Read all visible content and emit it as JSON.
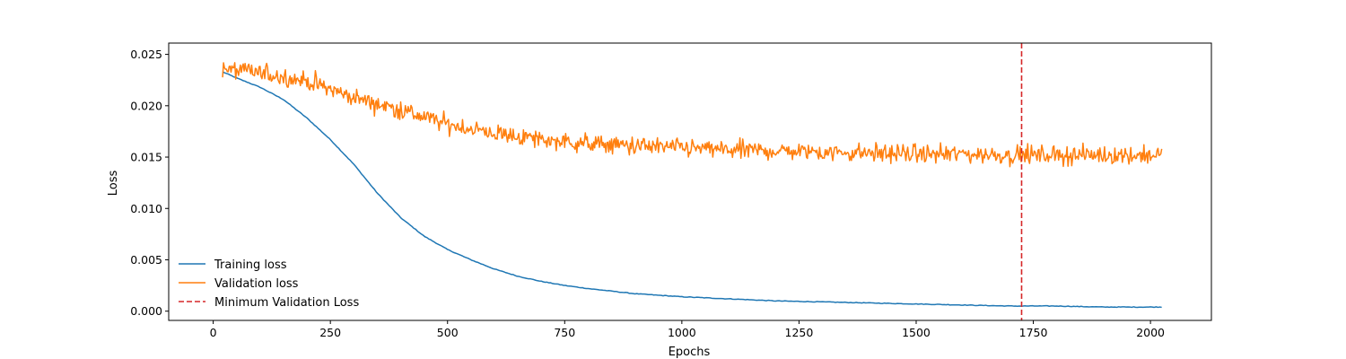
{
  "chart_data": {
    "type": "line",
    "title": "",
    "xlabel": "Epochs",
    "ylabel": "Loss",
    "xlim": [
      -95,
      2130
    ],
    "ylim": [
      -0.0009,
      0.0261
    ],
    "xticks": [
      0,
      250,
      500,
      750,
      1000,
      1250,
      1500,
      1750,
      2000
    ],
    "yticks": [
      0.0,
      0.005,
      0.01,
      0.015,
      0.02,
      0.025
    ],
    "ytick_labels": [
      "0.000",
      "0.005",
      "0.010",
      "0.015",
      "0.020",
      "0.025"
    ],
    "grid": false,
    "legend": {
      "position": "lower-left",
      "frame": false
    },
    "x_range": [
      20,
      2025
    ],
    "series": [
      {
        "name": "Training loss",
        "color": "#1f77b4",
        "style": "solid",
        "x": [
          20,
          50,
          100,
          150,
          200,
          250,
          300,
          350,
          400,
          450,
          500,
          550,
          600,
          650,
          700,
          750,
          800,
          900,
          1000,
          1100,
          1200,
          1300,
          1400,
          1500,
          1600,
          1700,
          1800,
          1900,
          2025
        ],
        "y": [
          0.0233,
          0.0227,
          0.0218,
          0.0206,
          0.0188,
          0.0167,
          0.0143,
          0.0115,
          0.0091,
          0.0073,
          0.006,
          0.005,
          0.0041,
          0.0034,
          0.0029,
          0.0025,
          0.0022,
          0.0017,
          0.0014,
          0.0012,
          0.001,
          0.0009,
          0.0008,
          0.0007,
          0.0006,
          0.0005,
          0.0005,
          0.0004,
          0.0004
        ]
      },
      {
        "name": "Validation loss",
        "color": "#ff7f0e",
        "style": "solid",
        "noise": 0.0008,
        "x": [
          20,
          100,
          200,
          300,
          400,
          500,
          600,
          700,
          800,
          900,
          1000,
          1100,
          1200,
          1300,
          1400,
          1500,
          1600,
          1700,
          1800,
          1900,
          2025
        ],
        "y": [
          0.0236,
          0.0232,
          0.0224,
          0.0208,
          0.0196,
          0.0182,
          0.0173,
          0.0167,
          0.0163,
          0.0161,
          0.0159,
          0.0157,
          0.0156,
          0.0155,
          0.0154,
          0.0153,
          0.0153,
          0.0152,
          0.0152,
          0.0152,
          0.0152
        ]
      }
    ],
    "vlines": [
      {
        "name": "Minimum Validation Loss",
        "x": 1725,
        "color": "#d62728",
        "style": "dashed"
      }
    ]
  }
}
